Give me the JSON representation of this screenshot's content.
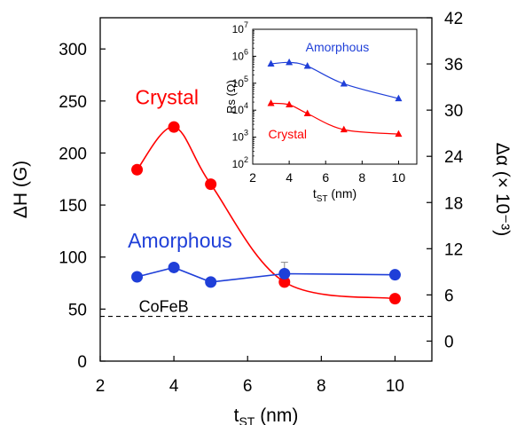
{
  "chart_data": [
    {
      "type": "line",
      "xlabel": "t",
      "xlabel_sub": "ST",
      "xlabel_unit": " (nm)",
      "ylabel_left": "ΔH (G)",
      "ylabel_right": "Δα (× 10⁻³)",
      "xlim": [
        2,
        11
      ],
      "ylim_left": [
        0,
        330
      ],
      "ylim_right": [
        -2.6,
        42
      ],
      "xticks": [
        2,
        4,
        6,
        8,
        10
      ],
      "yticks_left": [
        0,
        50,
        100,
        150,
        200,
        250,
        300
      ],
      "yticks_right": [
        0,
        6,
        12,
        18,
        24,
        30,
        36,
        42
      ],
      "reference_line": {
        "label": "CoFeB",
        "y": 43
      },
      "series": [
        {
          "name": "Crystal",
          "color": "#ff0000",
          "x": [
            3,
            4,
            5,
            7,
            10
          ],
          "y": [
            184,
            225,
            170,
            76,
            60
          ]
        },
        {
          "name": "Amorphous",
          "color": "#1f3fd8",
          "x": [
            3,
            4,
            5,
            7,
            10
          ],
          "y": [
            81,
            90,
            76,
            84,
            83
          ],
          "error_point": {
            "x": 7,
            "y_high": 95
          }
        }
      ]
    },
    {
      "type": "line",
      "inset": true,
      "xlabel": "t",
      "xlabel_sub": "ST",
      "xlabel_unit": " (nm)",
      "ylabel": "Rs (Ω)",
      "yscale": "log",
      "xlim": [
        2,
        11
      ],
      "ylim": [
        100,
        10000000
      ],
      "xticks": [
        2,
        4,
        6,
        8,
        10
      ],
      "ytick_exponents": [
        2,
        3,
        4,
        5,
        6,
        7
      ],
      "series": [
        {
          "name": "Amorphous",
          "color": "#1f3fd8",
          "x": [
            3,
            4,
            5,
            7,
            10
          ],
          "y": [
            520000,
            590000,
            430000,
            95000,
            27000
          ]
        },
        {
          "name": "Crystal",
          "color": "#ff0000",
          "x": [
            3,
            4,
            5,
            7,
            10
          ],
          "y": [
            18000,
            16000,
            7500,
            1900,
            1300
          ]
        }
      ]
    }
  ]
}
